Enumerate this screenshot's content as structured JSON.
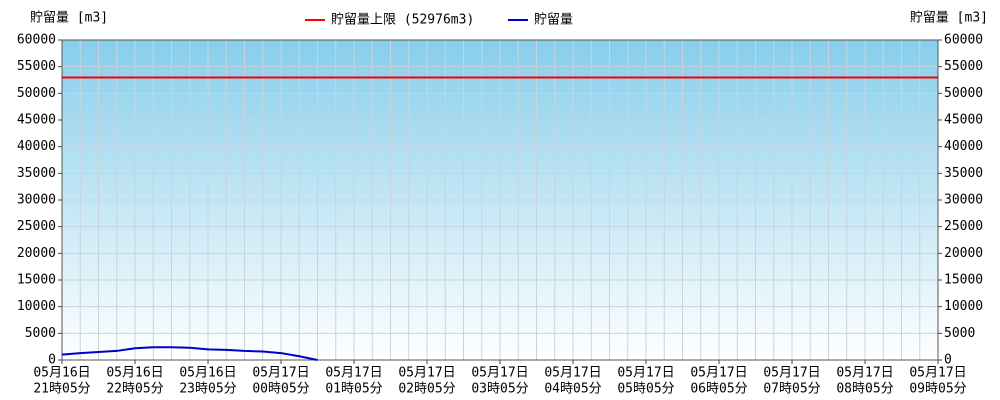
{
  "chart_data": {
    "type": "line",
    "y_label": "貯留量 [m3]",
    "y2_label": "貯留量 [m3]",
    "categories": [
      {
        "date": "05月16日",
        "time": "21時05分"
      },
      null,
      null,
      null,
      {
        "date": "05月16日",
        "time": "22時05分"
      },
      null,
      null,
      null,
      {
        "date": "05月16日",
        "time": "23時05分"
      },
      null,
      null,
      null,
      {
        "date": "05月17日",
        "time": "00時05分"
      },
      null,
      null,
      null,
      {
        "date": "05月17日",
        "time": "01時05分"
      },
      null,
      null,
      null,
      {
        "date": "05月17日",
        "time": "02時05分"
      },
      null,
      null,
      null,
      {
        "date": "05月17日",
        "time": "03時05分"
      },
      null,
      null,
      null,
      {
        "date": "05月17日",
        "time": "04時05分"
      },
      null,
      null,
      null,
      {
        "date": "05月17日",
        "time": "05時05分"
      },
      null,
      null,
      null,
      {
        "date": "05月17日",
        "time": "06時05分"
      },
      null,
      null,
      null,
      {
        "date": "05月17日",
        "time": "07時05分"
      },
      null,
      null,
      null,
      {
        "date": "05月17日",
        "time": "08時05分"
      },
      null,
      null,
      null,
      {
        "date": "05月17日",
        "time": "09時05分"
      }
    ],
    "limit": {
      "name": "貯留量上限 (52976m3)",
      "color": "#ff0000",
      "value": 52976
    },
    "series": [
      {
        "name": "貯留量",
        "color": "#0000cc",
        "values": [
          1000,
          1300,
          1500,
          1700,
          2200,
          2400,
          2400,
          2300,
          2000,
          1900,
          1700,
          1600,
          1300,
          700,
          0,
          null,
          null,
          null,
          null,
          null,
          null,
          null,
          null,
          null,
          null,
          null,
          null,
          null,
          null,
          null,
          null,
          null,
          null,
          null,
          null,
          null,
          null,
          null,
          null,
          null,
          null,
          null,
          null,
          null,
          null,
          null,
          null,
          null,
          null
        ]
      }
    ],
    "ylim": [
      0,
      60000
    ],
    "yticks": [
      0,
      5000,
      10000,
      15000,
      20000,
      25000,
      30000,
      35000,
      40000,
      45000,
      50000,
      55000,
      60000
    ],
    "y2lim": [
      0,
      60000
    ],
    "y2ticks": [
      0,
      5000,
      10000,
      15000,
      20000,
      25000,
      30000,
      35000,
      40000,
      45000,
      50000,
      55000,
      60000
    ],
    "grid": true
  }
}
